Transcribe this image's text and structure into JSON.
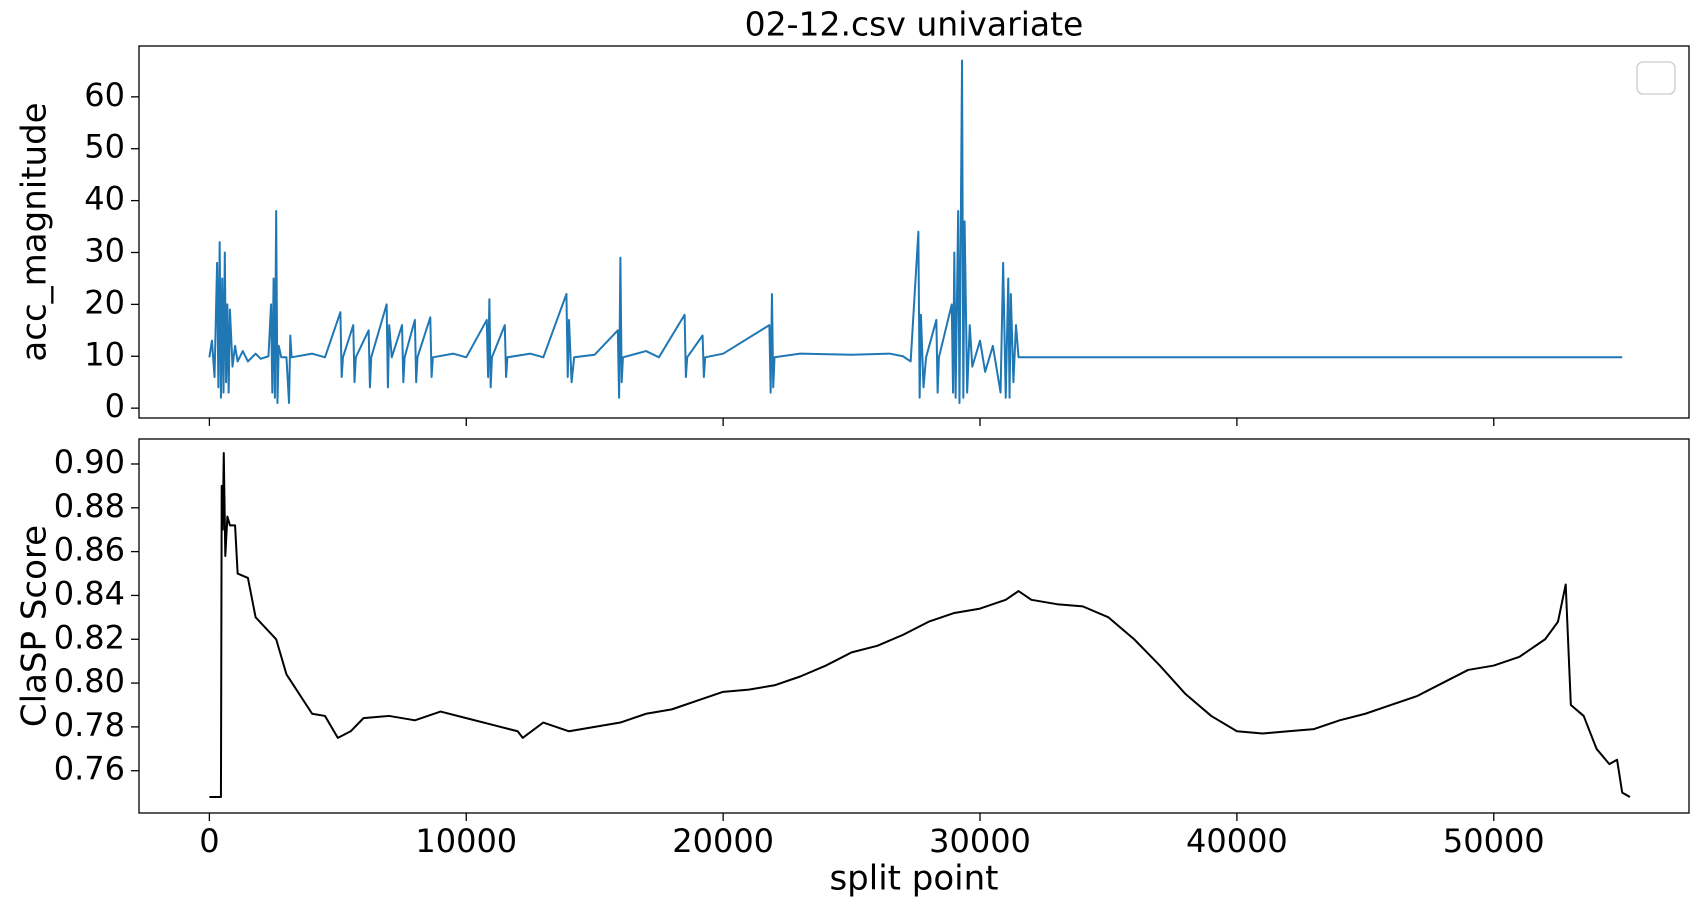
{
  "chart_data": [
    {
      "type": "line",
      "title": "02-12.csv univariate",
      "ylabel": "acc_magnitude",
      "color": "#1f77b4",
      "legend": "upper right",
      "x": [
        0,
        100,
        200,
        300,
        350,
        400,
        450,
        500,
        550,
        600,
        650,
        700,
        750,
        800,
        900,
        1000,
        1100,
        1300,
        1500,
        1800,
        2000,
        2300,
        2400,
        2450,
        2500,
        2550,
        2600,
        2650,
        2700,
        2800,
        3000,
        3100,
        3150,
        3200,
        4000,
        4500,
        5100,
        5150,
        5200,
        5600,
        5650,
        5700,
        6200,
        6250,
        6300,
        6900,
        6950,
        7000,
        7100,
        7500,
        7550,
        7600,
        8000,
        8050,
        8100,
        8600,
        8650,
        8700,
        9500,
        10000,
        10800,
        10850,
        10900,
        10950,
        11000,
        11500,
        11550,
        11600,
        12500,
        13000,
        13900,
        13950,
        14000,
        14100,
        14200,
        15000,
        15900,
        15950,
        16000,
        16050,
        16100,
        17000,
        17500,
        18500,
        18550,
        18600,
        19200,
        19250,
        19300,
        20000,
        21800,
        21850,
        21900,
        21950,
        22000,
        23000,
        25000,
        26500,
        27000,
        27300,
        27600,
        27650,
        27700,
        27800,
        27900,
        28300,
        28350,
        28400,
        28900,
        28950,
        29000,
        29050,
        29150,
        29200,
        29300,
        29350,
        29400,
        29500,
        29600,
        29700,
        30000,
        30200,
        30500,
        30800,
        30900,
        31000,
        31100,
        31150,
        31200,
        31300,
        31400,
        31500,
        32000,
        40000,
        48000,
        55000
      ],
      "values": [
        9.8,
        13,
        6,
        28,
        4,
        32,
        2,
        25,
        3,
        30,
        5,
        20,
        3,
        19,
        8,
        12,
        9,
        11,
        9,
        10.5,
        9.5,
        10,
        20,
        3,
        25,
        2,
        38,
        1,
        12,
        9.8,
        9.8,
        1,
        14,
        9.8,
        10.5,
        9.8,
        18.5,
        6,
        9.8,
        16,
        5,
        9.8,
        15,
        4,
        9.8,
        20,
        4,
        16,
        9.8,
        16,
        5,
        9.8,
        17,
        5,
        9.8,
        17.5,
        6,
        9.8,
        10.5,
        9.8,
        17,
        6,
        21,
        4,
        9.8,
        16,
        6,
        9.8,
        10.5,
        9.8,
        22,
        6,
        17,
        5,
        9.8,
        10.3,
        15,
        2,
        29,
        5,
        9.8,
        11,
        9.8,
        18,
        6,
        9.8,
        14,
        6,
        9.8,
        10.5,
        16,
        3,
        22,
        4,
        9.8,
        10.5,
        10.3,
        10.5,
        10,
        9,
        34,
        2,
        18,
        4,
        9.8,
        17,
        3,
        9.8,
        20,
        3,
        30,
        2,
        38,
        1,
        67,
        2,
        36,
        3,
        16,
        8,
        13,
        7,
        12,
        3,
        28,
        2,
        25,
        2,
        22,
        5,
        16,
        9.8,
        9.8,
        9.8,
        9.8,
        9.8
      ],
      "xlim": [
        -2740,
        57600
      ],
      "xticks": [
        0,
        10000,
        20000,
        30000,
        40000,
        50000
      ],
      "ylim": [
        -1.9,
        69.8
      ],
      "yticks": [
        0,
        10,
        20,
        30,
        40,
        50,
        60
      ]
    },
    {
      "type": "line",
      "ylabel": "ClaSP Score",
      "xlabel": "split point",
      "color": "#000000",
      "x": [
        0,
        450,
        480,
        520,
        560,
        620,
        700,
        800,
        1000,
        1100,
        1500,
        1800,
        2200,
        2600,
        3000,
        3500,
        4000,
        4500,
        5000,
        5500,
        6000,
        7000,
        8000,
        9000,
        10000,
        11000,
        12000,
        12200,
        13000,
        14000,
        15000,
        16000,
        17000,
        18000,
        19000,
        20000,
        21000,
        22000,
        23000,
        24000,
        25000,
        26000,
        27000,
        28000,
        29000,
        30000,
        31000,
        31500,
        32000,
        33000,
        34000,
        35000,
        36000,
        37000,
        38000,
        39000,
        40000,
        41000,
        42000,
        43000,
        44000,
        45000,
        46000,
        47000,
        48000,
        49000,
        50000,
        51000,
        52000,
        52500,
        52800,
        53000,
        53500,
        54000,
        54500,
        54800,
        55000,
        55300
      ],
      "values": [
        0.748,
        0.748,
        0.89,
        0.87,
        0.905,
        0.858,
        0.876,
        0.872,
        0.872,
        0.85,
        0.848,
        0.83,
        0.825,
        0.82,
        0.804,
        0.795,
        0.786,
        0.785,
        0.775,
        0.778,
        0.784,
        0.785,
        0.783,
        0.787,
        0.784,
        0.781,
        0.778,
        0.775,
        0.782,
        0.778,
        0.78,
        0.782,
        0.786,
        0.788,
        0.792,
        0.796,
        0.797,
        0.799,
        0.803,
        0.808,
        0.814,
        0.817,
        0.822,
        0.828,
        0.832,
        0.834,
        0.838,
        0.842,
        0.838,
        0.836,
        0.835,
        0.83,
        0.82,
        0.808,
        0.795,
        0.785,
        0.778,
        0.777,
        0.778,
        0.779,
        0.783,
        0.786,
        0.79,
        0.794,
        0.8,
        0.806,
        0.808,
        0.812,
        0.82,
        0.828,
        0.845,
        0.79,
        0.785,
        0.77,
        0.763,
        0.765,
        0.75,
        0.748
      ],
      "xlim": [
        -2740,
        57600
      ],
      "xticks": [
        0,
        10000,
        20000,
        30000,
        40000,
        50000
      ],
      "ylim": [
        0.7407,
        0.9114
      ],
      "yticks": [
        0.76,
        0.78,
        {
          "value": 0.8,
          "label": "0.80"
        },
        0.82,
        0.84,
        0.86,
        0.88,
        {
          "value": 0.9,
          "label": "0.90"
        }
      ]
    }
  ]
}
